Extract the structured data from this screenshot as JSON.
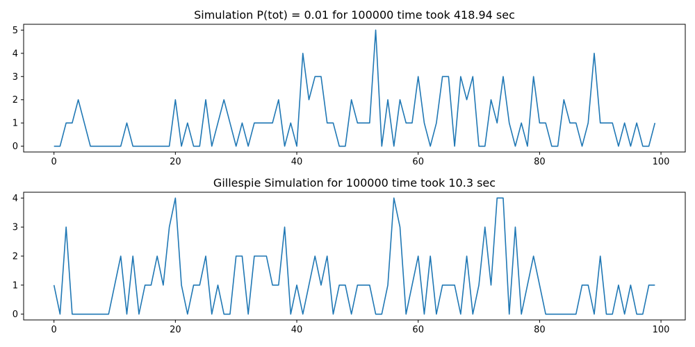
{
  "chart_data": [
    {
      "type": "line",
      "title": "Simulation P(tot) = 0.01 for 100000 time took 418.94 sec",
      "xlabel": "",
      "ylabel": "",
      "xlim": [
        -5,
        104
      ],
      "ylim": [
        -0.25,
        5.25
      ],
      "xticks": [
        0,
        20,
        40,
        60,
        80,
        100
      ],
      "yticks": [
        0,
        1,
        2,
        3,
        4,
        5
      ],
      "grid": false,
      "color": "#1f77b4",
      "x_start": 0,
      "x_step": 1,
      "values": [
        0,
        0,
        1,
        1,
        2,
        1,
        0,
        0,
        0,
        0,
        0,
        0,
        1,
        0,
        0,
        0,
        0,
        0,
        0,
        0,
        2,
        0,
        1,
        0,
        0,
        2,
        0,
        1,
        2,
        1,
        0,
        1,
        0,
        1,
        1,
        1,
        1,
        2,
        0,
        1,
        0,
        4,
        2,
        3,
        3,
        1,
        1,
        0,
        0,
        2,
        1,
        1,
        1,
        5,
        0,
        2,
        0,
        2,
        1,
        1,
        3,
        1,
        0,
        1,
        3,
        3,
        0,
        3,
        2,
        3,
        0,
        0,
        2,
        1,
        3,
        1,
        0,
        1,
        0,
        3,
        1,
        1,
        0,
        0,
        2,
        1,
        1,
        0,
        1,
        4,
        1,
        1,
        1,
        0,
        1,
        0,
        1,
        0,
        0,
        1
      ]
    },
    {
      "type": "line",
      "title": "Gillespie Simulation for 100000 time took 10.3 sec",
      "xlabel": "",
      "ylabel": "",
      "xlim": [
        -5,
        104
      ],
      "ylim": [
        -0.2,
        4.2
      ],
      "xticks": [
        0,
        20,
        40,
        60,
        80,
        100
      ],
      "yticks": [
        0,
        1,
        2,
        3,
        4
      ],
      "grid": false,
      "color": "#1f77b4",
      "x_start": 0,
      "x_step": 1,
      "values": [
        1,
        0,
        3,
        0,
        0,
        0,
        0,
        0,
        0,
        0,
        1,
        2,
        0,
        2,
        0,
        1,
        1,
        2,
        1,
        3,
        4,
        1,
        0,
        1,
        1,
        2,
        0,
        1,
        0,
        0,
        2,
        2,
        0,
        2,
        2,
        2,
        1,
        1,
        3,
        0,
        1,
        0,
        1,
        2,
        1,
        2,
        0,
        1,
        1,
        0,
        1,
        1,
        1,
        0,
        0,
        1,
        4,
        3,
        0,
        1,
        2,
        0,
        2,
        0,
        1,
        1,
        1,
        0,
        2,
        0,
        1,
        3,
        1,
        4,
        4,
        0,
        3,
        0,
        1,
        2,
        1,
        0,
        0,
        0,
        0,
        0,
        0,
        1,
        1,
        0,
        2,
        0,
        0,
        1,
        0,
        1,
        0,
        0,
        1,
        1
      ]
    }
  ]
}
